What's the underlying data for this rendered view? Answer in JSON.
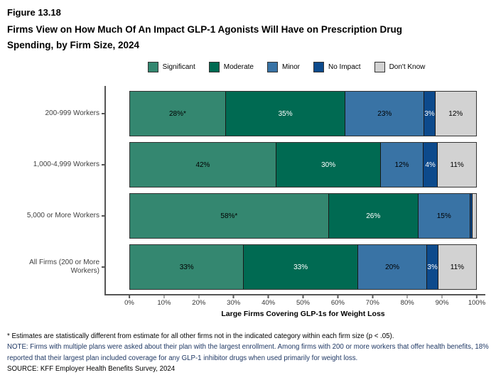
{
  "header": {
    "figure_label": "Figure 13.18",
    "title_line1": "Firms View on How Much Of An Impact GLP-1 Agonists Will Have on Prescription Drug",
    "title_line2": "Spending, by Firm Size, 2024"
  },
  "colors": {
    "significant": "#348770",
    "moderate": "#006A52",
    "minor": "#3973A5",
    "no_impact": "#0D4A8C",
    "dont_know": "#D2D2D2",
    "axis": "#555555",
    "note_navy": "#1F3864"
  },
  "chart_data": {
    "type": "bar",
    "orientation": "horizontal",
    "stacked": true,
    "title": "Firms View on How Much Of An Impact GLP-1 Agonists Will Have on Prescription Drug Spending, by Firm Size, 2024",
    "categories": [
      "200-999 Workers",
      "1,000-4,999 Workers",
      "5,000 or More Workers",
      "All Firms (200 or More Workers)"
    ],
    "series": [
      {
        "name": "Significant",
        "color": "#348770",
        "label_color": "#000000",
        "values": [
          28,
          42,
          58,
          33
        ],
        "labels": [
          "28%*",
          "42%",
          "58%*",
          "33%"
        ]
      },
      {
        "name": "Moderate",
        "color": "#006A52",
        "label_color": "#ffffff",
        "values": [
          35,
          30,
          26,
          33
        ],
        "labels": [
          "35%",
          "30%",
          "26%",
          "33%"
        ]
      },
      {
        "name": "Minor",
        "color": "#3973A5",
        "label_color": "#000000",
        "values": [
          23,
          12,
          15,
          20
        ],
        "labels": [
          "23%",
          "12%",
          "15%",
          "20%"
        ]
      },
      {
        "name": "No Impact",
        "color": "#0D4A8C",
        "label_color": "#ffffff",
        "values": [
          3,
          4,
          0.5,
          3
        ],
        "labels": [
          "3%",
          "4%",
          "",
          "3%"
        ]
      },
      {
        "name": "Don't Know",
        "color": "#D2D2D2",
        "label_color": "#000000",
        "values": [
          12,
          11,
          1,
          11
        ],
        "labels": [
          "12%",
          "11%",
          "",
          "11%"
        ]
      }
    ],
    "legend_position": "top",
    "xlabel": "Large Firms Covering GLP-1s for Weight Loss",
    "x_ticks": [
      "0%",
      "10%",
      "20%",
      "30%",
      "40%",
      "50%",
      "60%",
      "70%",
      "80%",
      "90%",
      "100%"
    ],
    "xlim": [
      0,
      100
    ],
    "grid": false
  },
  "notes": {
    "footnote": "* Estimates are statistically different from estimate for all other firms not in the indicated category within each firm size (p < .05).",
    "note": "NOTE: Firms with multiple plans were asked about their plan with the largest enrollment.  Among firms with 200 or more workers that offer health benefits, 18% reported that their largest plan included coverage for any GLP-1 inhibitor drugs when used primarily for weight loss.",
    "source": "SOURCE: KFF Employer Health Benefits Survey, 2024"
  }
}
